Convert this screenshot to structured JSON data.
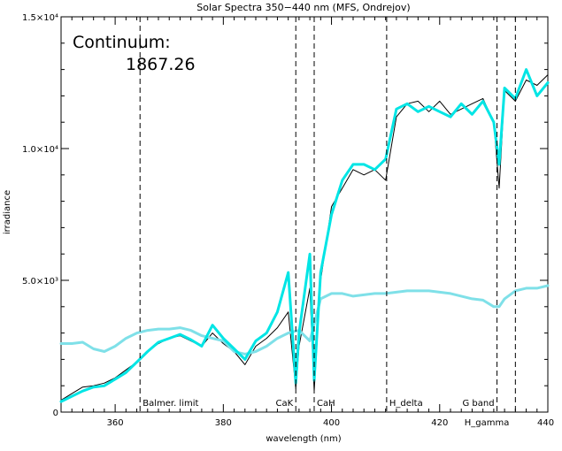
{
  "chart_data": {
    "type": "line",
    "title": "Solar Spectra 350−440 nm (MFS, Ondrejov)",
    "xlabel": "wavelength (nm)",
    "ylabel": "irradiance",
    "xlim": [
      350,
      440
    ],
    "ylim": [
      0,
      15000
    ],
    "x_ticks": [
      {
        "value": 360,
        "label": "360"
      },
      {
        "value": 380,
        "label": "380"
      },
      {
        "value": 400,
        "label": "400"
      },
      {
        "value": 420,
        "label": "420"
      },
      {
        "value": 440,
        "label": "440"
      }
    ],
    "y_ticks": [
      {
        "value": 0,
        "label": "0"
      },
      {
        "value": 5000,
        "label": "5.0×10³"
      },
      {
        "value": 10000,
        "label": "1.0×10⁴"
      },
      {
        "value": 15000,
        "label": "1.5×10⁴"
      }
    ],
    "annotation": {
      "label": "Continuum:",
      "value": "1867.26"
    },
    "lines": [
      {
        "name": "Balmer. limit",
        "x": 364.6
      },
      {
        "name": "CaK",
        "x": 393.4
      },
      {
        "name": "CaH",
        "x": 396.8
      },
      {
        "name": "H_delta",
        "x": 410.2
      },
      {
        "name": "G band",
        "x": 430.6
      },
      {
        "name": "H_gamma",
        "x": 434.0
      }
    ],
    "series": [
      {
        "color": "#000000",
        "x": [
          350,
          352,
          354,
          356,
          358,
          360,
          362,
          364,
          366,
          368,
          370,
          372,
          374,
          376,
          378,
          380,
          382,
          384,
          386,
          388,
          390,
          392,
          393.4,
          394,
          396,
          396.8,
          398,
          400,
          402,
          404,
          406,
          408,
          410,
          412,
          414,
          416,
          418,
          420,
          422,
          424,
          426,
          428,
          430,
          431,
          432,
          434,
          436,
          438,
          440
        ],
        "y": [
          450,
          700,
          950,
          1000,
          1100,
          1300,
          1600,
          1900,
          2300,
          2600,
          2800,
          2900,
          2700,
          2500,
          3000,
          2600,
          2300,
          1800,
          2500,
          2800,
          3200,
          3800,
          900,
          2500,
          4700,
          800,
          5000,
          7800,
          8500,
          9200,
          9000,
          9200,
          8800,
          11200,
          11700,
          11800,
          11400,
          11800,
          11300,
          11500,
          11700,
          11900,
          11000,
          8500,
          12200,
          11800,
          12600,
          12400,
          12800
        ]
      },
      {
        "color": "#7fe0e8",
        "x": [
          350,
          352,
          354,
          356,
          358,
          360,
          362,
          364,
          366,
          368,
          370,
          372,
          374,
          376,
          378,
          380,
          382,
          384,
          386,
          388,
          390,
          392,
          394,
          396,
          398,
          400,
          402,
          404,
          406,
          408,
          410,
          412,
          414,
          416,
          418,
          420,
          422,
          424,
          426,
          428,
          430,
          431,
          432,
          434,
          436,
          438,
          440
        ],
        "y": [
          2600,
          2600,
          2650,
          2400,
          2300,
          2500,
          2800,
          3000,
          3100,
          3150,
          3150,
          3200,
          3100,
          2900,
          2800,
          2700,
          2300,
          2200,
          2300,
          2500,
          2800,
          3000,
          3100,
          2700,
          4300,
          4500,
          4500,
          4400,
          4450,
          4500,
          4500,
          4550,
          4600,
          4600,
          4600,
          4550,
          4500,
          4400,
          4300,
          4250,
          4000,
          4000,
          4300,
          4600,
          4700,
          4700,
          4800
        ]
      },
      {
        "color": "#00e5e5",
        "x": [
          350,
          352,
          354,
          356,
          358,
          360,
          362,
          364,
          366,
          368,
          370,
          372,
          374,
          376,
          378,
          380,
          382,
          384,
          386,
          388,
          390,
          392,
          393.4,
          394,
          396,
          396.8,
          398,
          400,
          402,
          404,
          406,
          408,
          410,
          412,
          414,
          416,
          418,
          420,
          422,
          424,
          426,
          428,
          430,
          431,
          432,
          434,
          436,
          438,
          440
        ],
        "y": [
          400,
          600,
          800,
          950,
          1000,
          1250,
          1500,
          1900,
          2300,
          2650,
          2800,
          2950,
          2750,
          2500,
          3300,
          2800,
          2400,
          2000,
          2700,
          3000,
          3800,
          5300,
          1100,
          3000,
          6000,
          1200,
          5300,
          7500,
          8800,
          9400,
          9400,
          9200,
          9600,
          11500,
          11700,
          11400,
          11600,
          11400,
          11200,
          11700,
          11300,
          11800,
          11000,
          9400,
          12300,
          11900,
          13000,
          12000,
          12500
        ]
      }
    ]
  }
}
